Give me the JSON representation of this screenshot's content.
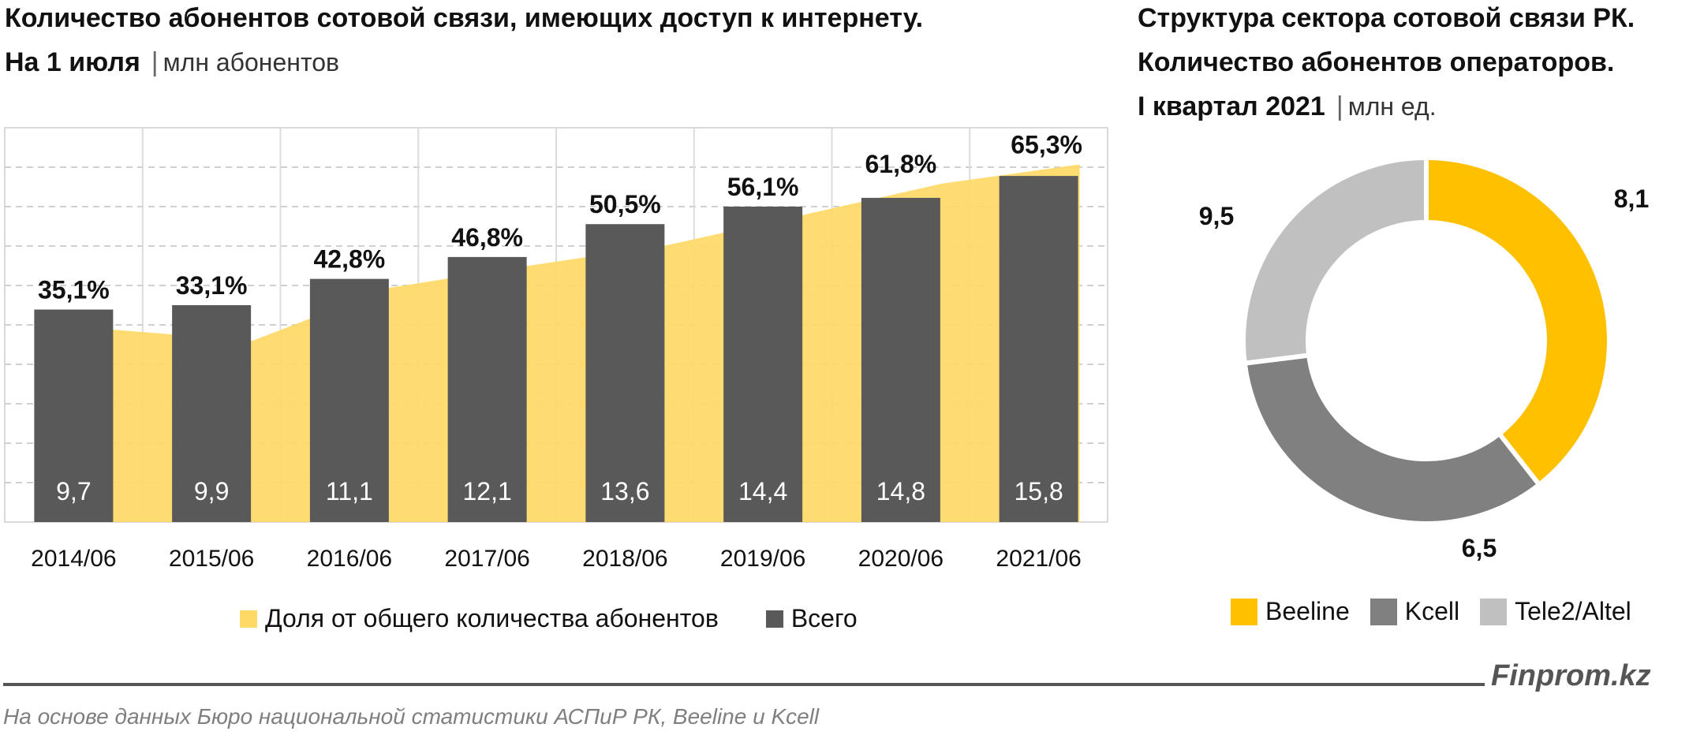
{
  "left": {
    "title_line1": "Количество абонентов сотовой связи, имеющих доступ к интернету.",
    "title_line2": "На 1 июля",
    "unit": "млн абонентов"
  },
  "right": {
    "title_line1": "Структура сектора сотовой связи РК.",
    "title_line2": "Количество абонентов операторов.",
    "title_line3": "I квартал 2021",
    "unit": "млн ед."
  },
  "colors": {
    "bar": "#595959",
    "area": "#FFD966",
    "beeline": "#FFC000",
    "kcell": "#808080",
    "tele2": "#C0C0C0"
  },
  "chart_data": [
    {
      "type": "bar",
      "categories": [
        "2014/06",
        "2015/06",
        "2016/06",
        "2017/06",
        "2018/06",
        "2019/06",
        "2020/06",
        "2021/06"
      ],
      "series": [
        {
          "name": "Всего",
          "values": [
            9.7,
            9.9,
            11.1,
            12.1,
            13.6,
            14.4,
            14.8,
            15.8
          ],
          "labels": [
            "9,7",
            "9,9",
            "11,1",
            "12,1",
            "13,6",
            "14,4",
            "14,8",
            "15,8"
          ]
        },
        {
          "name": "Доля от общего количества абонентов",
          "values": [
            35.1,
            33.1,
            42.8,
            46.8,
            50.5,
            56.1,
            61.8,
            65.3
          ],
          "labels": [
            "35,1%",
            "33,1%",
            "42,8%",
            "46,8%",
            "50,5%",
            "56,1%",
            "61,8%",
            "65,3%"
          ]
        }
      ],
      "ylim": [
        0,
        18
      ],
      "y2lim": [
        0,
        72
      ],
      "grid": true,
      "legend": "bottom"
    },
    {
      "type": "pie",
      "categories": [
        "Beeline",
        "Kcell",
        "Tele2/Altel"
      ],
      "values": [
        9.5,
        8.1,
        6.5
      ],
      "labels": [
        "9,5",
        "8,1",
        "6,5"
      ],
      "legend": "bottom"
    }
  ],
  "legend_left": [
    "Доля от общего количества абонентов",
    "Всего"
  ],
  "legend_right": [
    "Beeline",
    "Kcell",
    "Tele2/Altel"
  ],
  "brand": "Finprom.kz",
  "source": "На основе данных Бюро национальной статистики АСПиР РК, Beeline и Kcell"
}
